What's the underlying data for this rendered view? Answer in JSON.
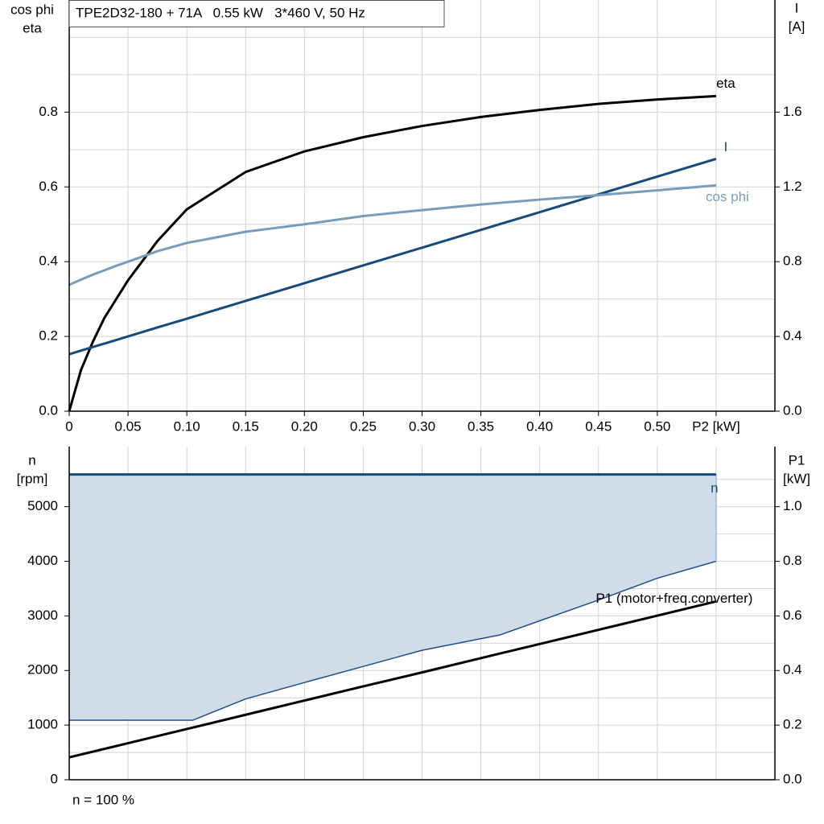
{
  "chart_data": [
    {
      "type": "line",
      "title": "TPE2D32-180 + 71A   0.55 kW   3*460 V, 50 Hz",
      "ylabel": [
        "cos phi",
        "eta"
      ],
      "y2label": [
        "I",
        "[A]"
      ],
      "x": [
        0,
        0.01,
        0.02,
        0.03,
        0.04,
        0.05,
        0.075,
        0.1,
        0.15,
        0.2,
        0.25,
        0.3,
        0.35,
        0.4,
        0.45,
        0.5,
        0.55
      ],
      "xlim": [
        0,
        0.6
      ],
      "xticks": [
        0,
        0.05,
        {
          "value": 0.1,
          "label": "0.10"
        },
        0.15,
        {
          "value": 0.2,
          "label": "0.20"
        },
        0.25,
        {
          "value": 0.3,
          "label": "0.30"
        },
        0.35,
        {
          "value": 0.4,
          "label": "0.40"
        },
        0.45,
        {
          "value": 0.5,
          "label": "0.50"
        },
        {
          "value": 0.55,
          "label": "P2 [kW]"
        }
      ],
      "ylim": [
        0,
        1.1
      ],
      "yticks": [
        {
          "value": 0,
          "label": "0.0"
        },
        0.2,
        0.4,
        0.6,
        0.8
      ],
      "minor_yticks": [
        0.1,
        0.3,
        0.5,
        0.7,
        0.9,
        1.0
      ],
      "y2lim": [
        0,
        2.2
      ],
      "y2ticks": [
        {
          "value": 0,
          "label": "0.0"
        },
        0.4,
        0.8,
        1.2,
        1.6
      ],
      "grid": true,
      "series": [
        {
          "name": "eta",
          "color": "#000000",
          "values": [
            0,
            0.11,
            0.185,
            0.25,
            0.3,
            0.35,
            0.455,
            0.54,
            0.64,
            0.695,
            0.733,
            0.763,
            0.787,
            0.806,
            0.822,
            0.834,
            0.843
          ]
        },
        {
          "name": "I",
          "color": "#174a7c",
          "axis": "y2",
          "values": [
            0.305,
            0.324,
            0.343,
            0.362,
            0.381,
            0.4,
            0.448,
            0.495,
            0.59,
            0.685,
            0.78,
            0.875,
            0.97,
            1.065,
            1.16,
            1.255,
            1.35
          ]
        },
        {
          "name": "cos phi",
          "color": "#7a9cbc",
          "values": [
            0.338,
            0.352,
            0.365,
            0.377,
            0.389,
            0.4,
            0.428,
            0.45,
            0.48,
            0.5,
            0.522,
            0.538,
            0.553,
            0.566,
            0.578,
            0.591,
            0.604
          ]
        }
      ]
    },
    {
      "type": "line",
      "ylabel": [
        "n",
        "[rpm]"
      ],
      "y2label": [
        "P1",
        "[kW]"
      ],
      "note": "n = 100 %",
      "x": [
        0,
        0.05,
        0.105,
        0.15,
        0.2,
        0.25,
        0.3,
        0.366,
        0.4,
        0.45,
        0.5,
        0.55
      ],
      "xlim": [
        0,
        0.6
      ],
      "minor_xticks": [
        0.05,
        0.1,
        0.15,
        0.2,
        0.25,
        0.3,
        0.35,
        0.4,
        0.45,
        0.5,
        0.55
      ],
      "ylim": [
        0,
        6100
      ],
      "yticks": [
        0,
        1000,
        2000,
        3000,
        4000,
        5000
      ],
      "minor_yticks": [
        500,
        1500,
        2500,
        3500,
        4500,
        5500
      ],
      "y2lim": [
        0,
        1.22
      ],
      "y2ticks": [
        {
          "value": 0,
          "label": "0.0"
        },
        0.2,
        0.4,
        0.6,
        0.8,
        {
          "value": 1.0,
          "label": "1.0"
        }
      ],
      "grid": true,
      "band": {
        "color": "#d0dce8",
        "line_color": "#1f4e8c",
        "values": [
          1090,
          1090,
          1090,
          1480,
          1780,
          2075,
          2370,
          2650,
          2910,
          3290,
          3690,
          4000
        ]
      },
      "series": [
        {
          "name": "n",
          "color": "#174a7c",
          "values": [
            5590,
            5590,
            5590,
            5590,
            5590,
            5590,
            5590,
            5590,
            5590,
            5590,
            5590,
            5590
          ]
        },
        {
          "name": "P1 (motor+freq.converter)",
          "color": "#000000",
          "axis": "y2",
          "values": [
            0.082,
            0.134,
            0.191,
            0.238,
            0.29,
            0.342,
            0.393,
            0.462,
            0.497,
            0.549,
            0.601,
            0.653
          ]
        }
      ]
    }
  ]
}
